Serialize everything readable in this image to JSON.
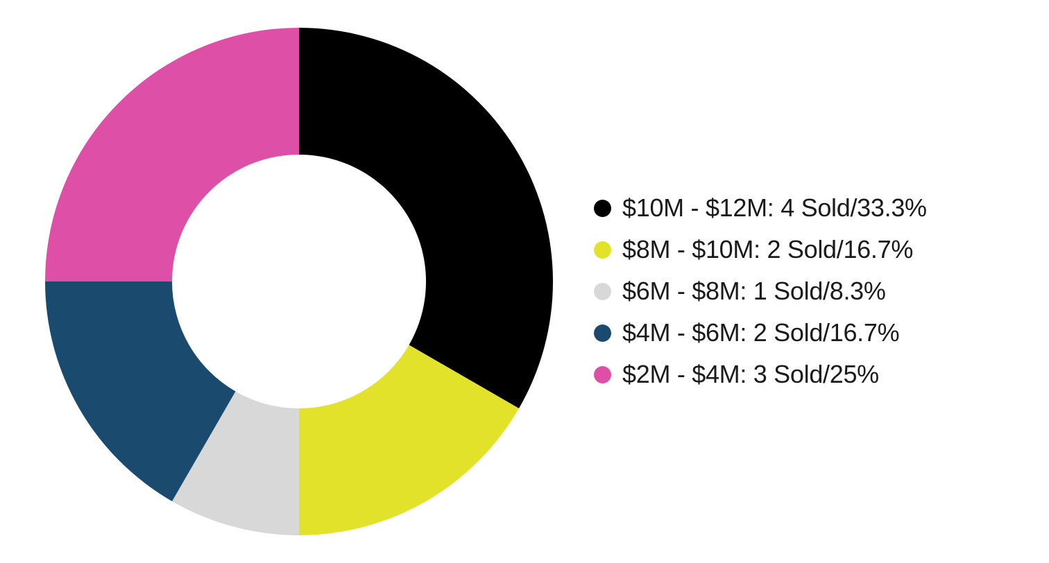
{
  "chart_data": {
    "type": "pie",
    "donut": true,
    "legend_position": "right",
    "slices": [
      {
        "range": "$10M - $12M",
        "sold": 4,
        "percent": 33.3,
        "color": "#000000",
        "legend_label": "$10M - $12M: 4 Sold/33.3%"
      },
      {
        "range": "$8M - $10M",
        "sold": 2,
        "percent": 16.7,
        "color": "#e3e22b",
        "legend_label": "$8M - $10M: 2 Sold/16.7%"
      },
      {
        "range": "$6M - $8M",
        "sold": 1,
        "percent": 8.3,
        "color": "#d8d8d8",
        "legend_label": "$6M - $8M: 1 Sold/8.3%"
      },
      {
        "range": "$4M - $6M",
        "sold": 2,
        "percent": 16.7,
        "color": "#1a4a6e",
        "legend_label": "$4M - $6M: 2 Sold/16.7%"
      },
      {
        "range": "$2M - $4M",
        "sold": 3,
        "percent": 25,
        "color": "#de4fa8",
        "legend_label": "$2M - $4M: 3 Sold/25%"
      }
    ]
  }
}
